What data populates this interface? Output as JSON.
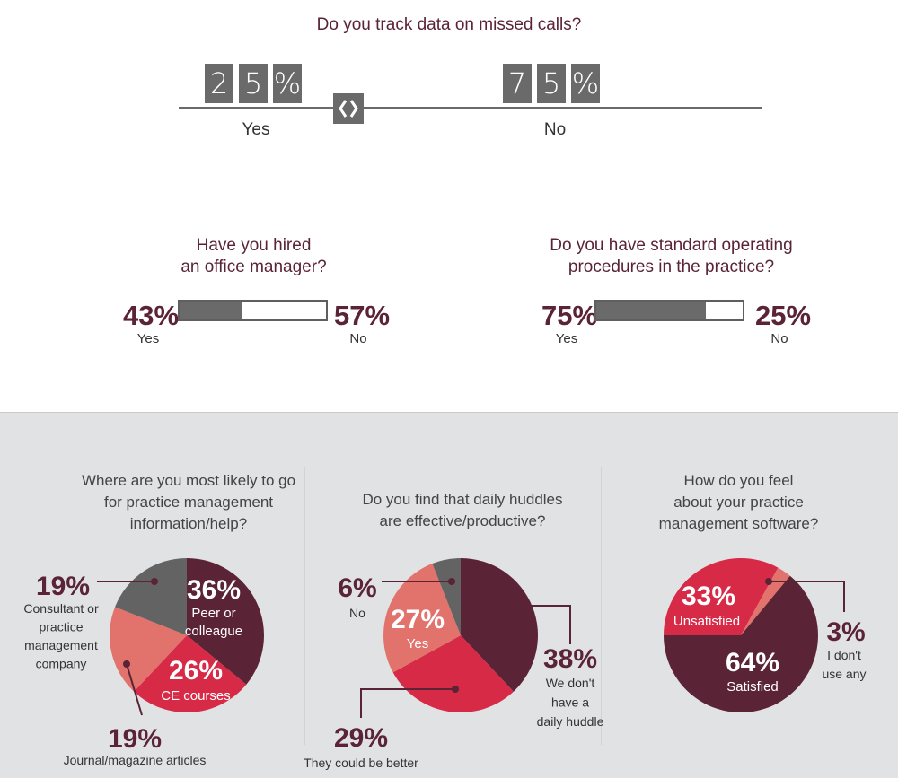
{
  "missed_calls": {
    "question": "Do you track data on missed calls?",
    "yes": {
      "digits": [
        "2",
        "5",
        "%"
      ],
      "label": "Yes",
      "value": 25
    },
    "no": {
      "digits": [
        "7",
        "5",
        "%"
      ],
      "label": "No",
      "value": 75
    },
    "slider_icon": "chevron-left-right-icon"
  },
  "office_manager": {
    "question_line1": "Have you hired",
    "question_line2": "an office manager?",
    "yes_pct": "43%",
    "yes_label": "Yes",
    "no_pct": "57%",
    "no_label": "No",
    "fill": 0.43
  },
  "sop": {
    "question_line1": "Do you have standard operating",
    "question_line2": "procedures in the practice?",
    "yes_pct": "75%",
    "yes_label": "Yes",
    "no_pct": "25%",
    "no_label": "No",
    "fill": 0.75
  },
  "colors": {
    "maroon": "#5b2336",
    "red": "#d72a47",
    "salmon": "#e2726c",
    "gray": "#636363",
    "bar_gray": "#6a6a6a",
    "panel_bg": "#e1e2e4"
  },
  "pie1": {
    "q1": "Where are you most likely to go",
    "q2": "for practice management",
    "q3": "information/help?"
  },
  "pie2": {
    "q1": "Do you find that daily huddles",
    "q2": "are effective/productive?"
  },
  "pie3": {
    "q1": "How do you feel",
    "q2": "about your practice",
    "q3": "management software?"
  },
  "chart_data": [
    {
      "type": "bar",
      "title": "Have you hired an office manager?",
      "categories": [
        "Yes",
        "No"
      ],
      "values": [
        43,
        57
      ]
    },
    {
      "type": "bar",
      "title": "Do you have standard operating procedures in the practice?",
      "categories": [
        "Yes",
        "No"
      ],
      "values": [
        75,
        25
      ]
    },
    {
      "type": "pie",
      "title": "Where are you most likely to go for practice management information/help?",
      "slices": [
        {
          "pct": "36%",
          "value": 36,
          "label_lines": [
            "Peer or",
            "colleague"
          ],
          "color": "#5b2336"
        },
        {
          "pct": "26%",
          "value": 26,
          "label_lines": [
            "CE courses"
          ],
          "color": "#d72a47"
        },
        {
          "pct": "19%",
          "value": 19,
          "label_lines": [
            "Journal/magazine articles"
          ],
          "color": "#e2726c"
        },
        {
          "pct": "19%",
          "value": 19,
          "label_lines": [
            "Consultant or",
            "practice",
            "management",
            "company"
          ],
          "color": "#636363"
        }
      ]
    },
    {
      "type": "pie",
      "title": "Do you find that daily huddles are effective/productive?",
      "slices": [
        {
          "pct": "38%",
          "value": 38,
          "label_lines": [
            "We don't",
            "have a",
            "daily huddle"
          ],
          "color": "#5b2336"
        },
        {
          "pct": "29%",
          "value": 29,
          "label_lines": [
            "They could be better"
          ],
          "color": "#d72a47"
        },
        {
          "pct": "27%",
          "value": 27,
          "label_lines": [
            "Yes"
          ],
          "color": "#e2726c"
        },
        {
          "pct": "6%",
          "value": 6,
          "label_lines": [
            "No"
          ],
          "color": "#636363"
        }
      ]
    },
    {
      "type": "pie",
      "title": "How do you feel about your practice management software?",
      "slices": [
        {
          "pct": "64%",
          "value": 64,
          "label_lines": [
            "Satisfied"
          ],
          "color": "#5b2336"
        },
        {
          "pct": "33%",
          "value": 33,
          "label_lines": [
            "Unsatisfied"
          ],
          "color": "#d72a47"
        },
        {
          "pct": "3%",
          "value": 3,
          "label_lines": [
            "I don't",
            "use any"
          ],
          "color": "#e2726c"
        }
      ]
    }
  ]
}
